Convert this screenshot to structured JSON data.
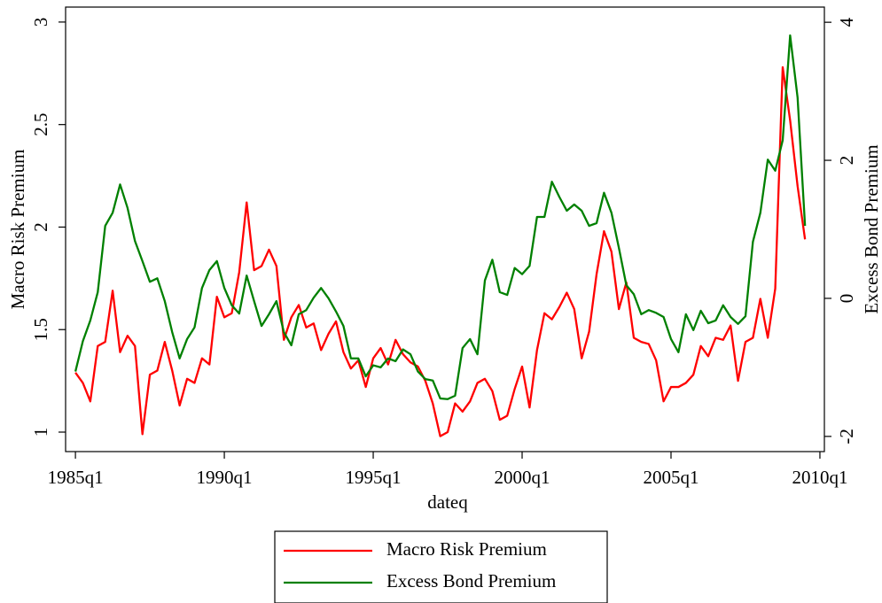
{
  "chart_data": {
    "type": "line",
    "x_label": "dateq",
    "y_label": "Macro Risk Premium",
    "y2_label": "Excess Bond Premium",
    "x": [
      1985,
      1985.25,
      1985.5,
      1985.75,
      1986,
      1986.25,
      1986.5,
      1986.75,
      1987,
      1987.25,
      1987.5,
      1987.75,
      1988,
      1988.25,
      1988.5,
      1988.75,
      1989,
      1989.25,
      1989.5,
      1989.75,
      1990,
      1990.25,
      1990.5,
      1990.75,
      1991,
      1991.25,
      1991.5,
      1991.75,
      1992,
      1992.25,
      1992.5,
      1992.75,
      1993,
      1993.25,
      1993.5,
      1993.75,
      1994,
      1994.25,
      1994.5,
      1994.75,
      1995,
      1995.25,
      1995.5,
      1995.75,
      1996,
      1996.25,
      1996.5,
      1996.75,
      1997,
      1997.25,
      1997.5,
      1997.75,
      1998,
      1998.25,
      1998.5,
      1998.75,
      1999,
      1999.25,
      1999.5,
      1999.75,
      2000,
      2000.25,
      2000.5,
      2000.75,
      2001,
      2001.25,
      2001.5,
      2001.75,
      2002,
      2002.25,
      2002.5,
      2002.75,
      2003,
      2003.25,
      2003.5,
      2003.75,
      2004,
      2004.25,
      2004.5,
      2004.75,
      2005,
      2005.25,
      2005.5,
      2005.75,
      2006,
      2006.25,
      2006.5,
      2006.75,
      2007,
      2007.25,
      2007.5,
      2007.75,
      2008,
      2008.25,
      2008.5,
      2008.75,
      2009,
      2009.25,
      2009.5
    ],
    "series": [
      {
        "name": "Macro Risk Premium",
        "color": "#ff0000",
        "axis": "y",
        "values": [
          1.29,
          1.24,
          1.15,
          1.42,
          1.44,
          1.69,
          1.39,
          1.47,
          1.42,
          0.99,
          1.28,
          1.3,
          1.44,
          1.3,
          1.13,
          1.26,
          1.24,
          1.36,
          1.33,
          1.66,
          1.56,
          1.58,
          1.78,
          2.12,
          1.79,
          1.81,
          1.89,
          1.81,
          1.45,
          1.56,
          1.62,
          1.51,
          1.53,
          1.4,
          1.48,
          1.54,
          1.39,
          1.31,
          1.35,
          1.22,
          1.36,
          1.41,
          1.33,
          1.45,
          1.38,
          1.34,
          1.32,
          1.25,
          1.14,
          0.98,
          1.0,
          1.14,
          1.1,
          1.15,
          1.24,
          1.26,
          1.2,
          1.06,
          1.08,
          1.21,
          1.32,
          1.12,
          1.4,
          1.58,
          1.55,
          1.61,
          1.68,
          1.6,
          1.36,
          1.49,
          1.77,
          1.98,
          1.88,
          1.6,
          1.73,
          1.46,
          1.44,
          1.43,
          1.35,
          1.15,
          1.22,
          1.22,
          1.24,
          1.28,
          1.42,
          1.37,
          1.46,
          1.45,
          1.52,
          1.25,
          1.44,
          1.46,
          1.65,
          1.46,
          1.7,
          2.78,
          2.52,
          2.2,
          1.94
        ]
      },
      {
        "name": "Excess Bond Premium",
        "color": "#008000",
        "axis": "y2",
        "values": [
          -1.06,
          -0.62,
          -0.32,
          0.09,
          1.05,
          1.24,
          1.65,
          1.31,
          0.83,
          0.54,
          0.24,
          0.29,
          -0.04,
          -0.49,
          -0.87,
          -0.59,
          -0.42,
          0.15,
          0.41,
          0.54,
          0.15,
          -0.1,
          -0.22,
          0.33,
          -0.04,
          -0.4,
          -0.23,
          -0.04,
          -0.49,
          -0.68,
          -0.23,
          -0.17,
          0.01,
          0.15,
          0,
          -0.19,
          -0.4,
          -0.87,
          -0.87,
          -1.13,
          -0.97,
          -1.0,
          -0.87,
          -0.91,
          -0.74,
          -0.81,
          -1.06,
          -1.17,
          -1.19,
          -1.45,
          -1.46,
          -1.41,
          -0.72,
          -0.59,
          -0.81,
          0.26,
          0.56,
          0.09,
          0.05,
          0.44,
          0.35,
          0.47,
          1.18,
          1.18,
          1.69,
          1.47,
          1.27,
          1.36,
          1.27,
          1.05,
          1.09,
          1.53,
          1.24,
          0.73,
          0.19,
          0.06,
          -0.23,
          -0.17,
          -0.21,
          -0.27,
          -0.59,
          -0.78,
          -0.23,
          -0.46,
          -0.18,
          -0.36,
          -0.32,
          -0.1,
          -0.27,
          -0.37,
          -0.26,
          0.82,
          1.24,
          2.01,
          1.85,
          2.29,
          3.81,
          2.91,
          1.05
        ]
      }
    ],
    "xlim": [
      1984.67,
      2010.15
    ],
    "xticks": [
      {
        "value": 1985,
        "label": "1985q1"
      },
      {
        "value": 1990,
        "label": "1990q1"
      },
      {
        "value": 1995,
        "label": "1995q1"
      },
      {
        "value": 2000,
        "label": "2000q1"
      },
      {
        "value": 2005,
        "label": "2005q1"
      },
      {
        "value": 2010,
        "label": "2010q1"
      }
    ],
    "ylim": [
      0.905,
      3.073
    ],
    "yticks": [
      1,
      1.5,
      2,
      2.5,
      3
    ],
    "y2lim": [
      -2.22,
      4.22
    ],
    "y2ticks": [
      -2,
      0,
      2,
      4
    ],
    "legend": "bottom"
  }
}
